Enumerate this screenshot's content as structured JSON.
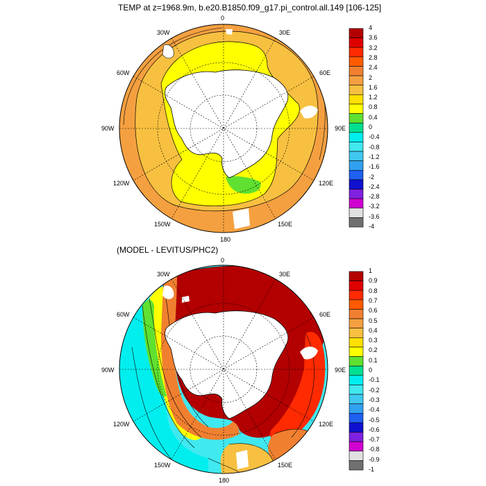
{
  "top_panel": {
    "title": "TEMP at z=1968.9m, b.e20.B1850.f09_g17.pi_control.all.149 [106-125]",
    "lon_labels": {
      "n": "0",
      "s": "180",
      "e": "90E",
      "w": "90W",
      "ne": "30E",
      "nw": "30W",
      "ene": "60E",
      "wnw": "60W",
      "ese": "120E",
      "wsw": "120W",
      "se": "150E",
      "sw": "150W"
    },
    "colorbar": {
      "labels": [
        "4",
        "3.6",
        "3.2",
        "2.8",
        "2.4",
        "2",
        "1.6",
        "1.2",
        "0.8",
        "0.4",
        "0",
        "-0.4",
        "-0.8",
        "-1.2",
        "-1.6",
        "-2",
        "-2.4",
        "-2.8",
        "-3.2",
        "-3.6",
        "-4"
      ],
      "colors": [
        "#b30000",
        "#e00000",
        "#ff2a00",
        "#ff5a00",
        "#f08030",
        "#f4a040",
        "#f8c040",
        "#ffe000",
        "#ffff00",
        "#60e030",
        "#00e090",
        "#00eeee",
        "#40e8f0",
        "#40c8f0",
        "#30a0f0",
        "#1e60f0",
        "#1010d0",
        "#8020e0",
        "#d000d0",
        "#e0e0e0",
        "#707070"
      ]
    }
  },
  "bottom_panel": {
    "title": "(MODEL - LEVITUS/PHC2)",
    "lon_labels": {
      "n": "0",
      "s": "180",
      "e": "90E",
      "w": "90W",
      "ne": "30E",
      "nw": "30W",
      "ene": "60E",
      "wnw": "60W",
      "ese": "120E",
      "wsw": "120W",
      "se": "150E",
      "sw": "150W"
    },
    "colorbar": {
      "labels": [
        "1",
        "0.9",
        "0.8",
        "0.7",
        "0.6",
        "0.5",
        "0.4",
        "0.3",
        "0.2",
        "0.1",
        "0",
        "-0.1",
        "-0.2",
        "-0.3",
        "-0.4",
        "-0.5",
        "-0.6",
        "-0.7",
        "-0.8",
        "-0.9",
        "-1"
      ],
      "colors": [
        "#b30000",
        "#e00000",
        "#ff2a00",
        "#ff5a00",
        "#f08030",
        "#f4a040",
        "#f8c040",
        "#ffe000",
        "#ffff00",
        "#60e030",
        "#00e090",
        "#00eeee",
        "#40e8f0",
        "#40c8f0",
        "#30a0f0",
        "#1e60f0",
        "#1010d0",
        "#8020e0",
        "#d000d0",
        "#e0e0e0",
        "#707070"
      ]
    }
  },
  "colors": {
    "land": "#ffffff",
    "frame": "#000000"
  }
}
